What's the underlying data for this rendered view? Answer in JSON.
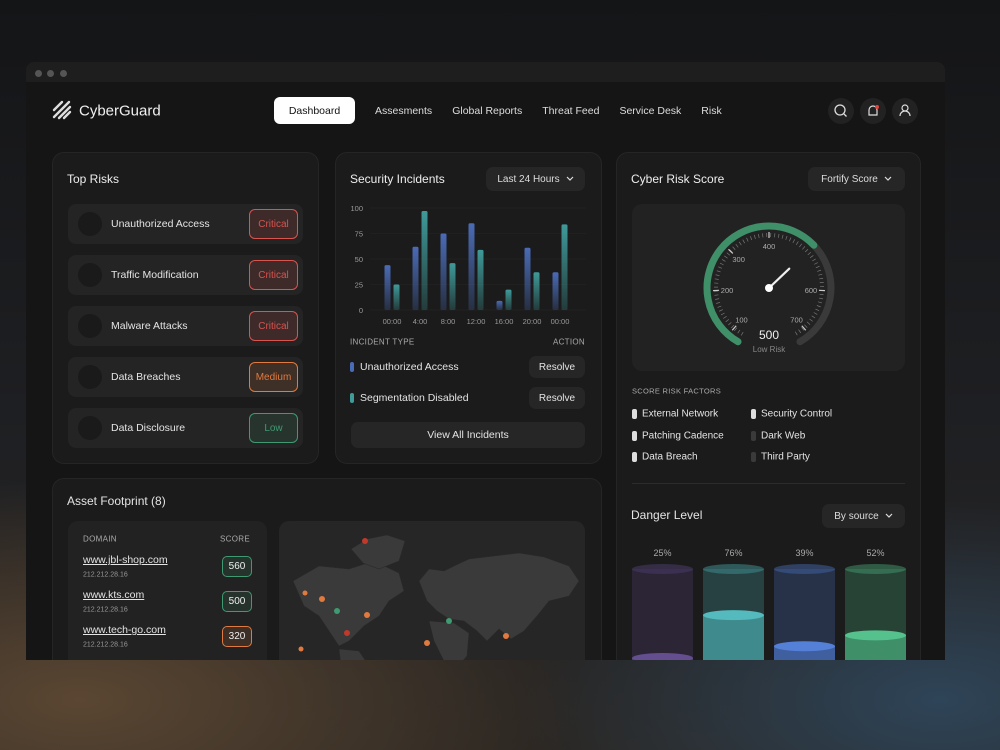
{
  "header": {
    "brand": "CyberGuard",
    "nav": [
      "Dashboard",
      "Assesments",
      "Global Reports",
      "Threat Feed",
      "Service Desk",
      "Risk"
    ]
  },
  "top_risks": {
    "title": "Top Risks",
    "items": [
      {
        "label": "Unauthorized Access",
        "level": "Critical",
        "color": "#d9534f"
      },
      {
        "label": "Traffic Modification",
        "level": "Critical",
        "color": "#d9534f"
      },
      {
        "label": "Malware Attacks",
        "level": "Critical",
        "color": "#d9534f"
      },
      {
        "label": "Data Breaches",
        "level": "Medium",
        "color": "#e07a3f"
      },
      {
        "label": "Data Disclosure",
        "level": "Low",
        "color": "#3f9a72"
      }
    ]
  },
  "security_incidents": {
    "title": "Security Incidents",
    "filter": "Last 24 Hours",
    "chart": {
      "type": "bar",
      "categories": [
        "00:00",
        "4:00",
        "8:00",
        "12:00",
        "16:00",
        "20:00",
        "00:00"
      ],
      "series": [
        {
          "color": "#4a6bb5",
          "values": [
            44,
            62,
            75,
            85,
            9,
            61,
            37
          ]
        },
        {
          "color": "#3f9a9a",
          "values": [
            25,
            97,
            46,
            59,
            20,
            37,
            84
          ]
        }
      ],
      "ylim": [
        0,
        100
      ],
      "yticks": [
        0,
        25,
        50,
        75,
        100
      ],
      "grid": true
    },
    "table": {
      "columns": [
        "INCIDENT TYPE",
        "ACTION"
      ],
      "rows": [
        {
          "type": "Unauthorized Access",
          "action": "Resolve",
          "color": "#4a6bb5"
        },
        {
          "type": "Segmentation Disabled",
          "action": "Resolve",
          "color": "#3f9a9a"
        }
      ]
    },
    "button": "View All Incidents"
  },
  "cyber_risk_score": {
    "title": "Cyber Risk Score",
    "filter": "Fortify Score",
    "gauge": {
      "type": "gauge",
      "value": 500,
      "label": "Low Risk",
      "ticks": [
        100,
        200,
        300,
        400,
        600,
        700
      ],
      "color": "#3f8f68"
    },
    "factors_title": "SCORE RISK FACTORS",
    "factors": [
      {
        "name": "External Network",
        "active": true
      },
      {
        "name": "Patching Cadence",
        "active": true
      },
      {
        "name": "Data Breach",
        "active": true
      },
      {
        "name": "Security Control",
        "active": true
      },
      {
        "name": "Dark Web",
        "active": false
      },
      {
        "name": "Third Party",
        "active": false
      }
    ]
  },
  "danger_level": {
    "title": "Danger Level",
    "filter": "By source",
    "chart": {
      "type": "bar",
      "values": [
        25,
        76,
        39,
        52
      ],
      "value_labels": [
        "25%",
        "76%",
        "39%",
        "52%"
      ],
      "colors": [
        "#4a3a6a",
        "#3e8a8c",
        "#3f5f9f",
        "#3f8f68"
      ],
      "ylim": [
        0,
        100
      ]
    }
  },
  "asset_footprint": {
    "title": "Asset Footprint (8)",
    "columns": [
      "DOMAIN",
      "SCORE"
    ],
    "rows": [
      {
        "domain": "www.jbl-shop.com",
        "ip": "212.212.28.16",
        "score": 560,
        "color": "#3f9a72"
      },
      {
        "domain": "www.kts.com",
        "ip": "212.212.28.16",
        "score": 500,
        "color": "#3f9a72"
      },
      {
        "domain": "www.tech-go.com",
        "ip": "212.212.28.16",
        "score": 320,
        "color": "#e07a3f"
      }
    ]
  }
}
